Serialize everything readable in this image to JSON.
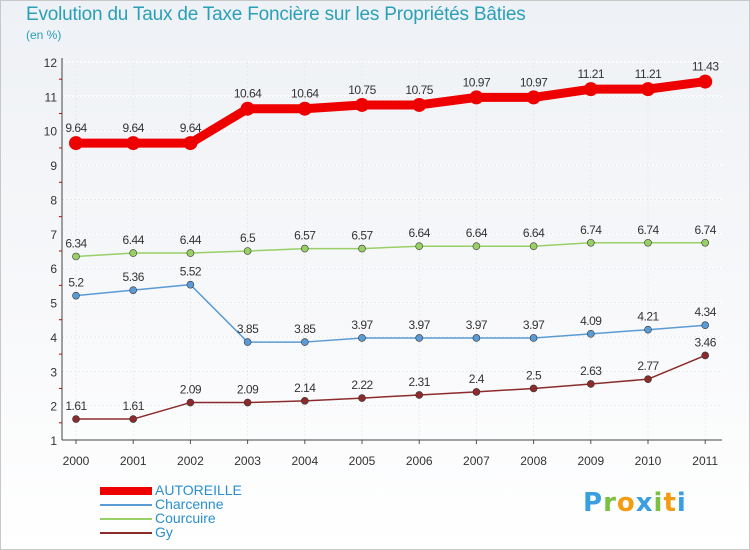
{
  "title": "Evolution du Taux de Taxe Foncière sur les Propriétés Bâties",
  "subtitle": "(en %)",
  "brand": {
    "letters": [
      "P",
      "r",
      "o",
      "x",
      "i",
      "t",
      "i"
    ],
    "colors": [
      "#3a9fe0",
      "#7ac142",
      "#f39c12",
      "#3a9fe0",
      "#7ac142",
      "#f39c12",
      "#3a9fe0"
    ]
  },
  "chart_data": {
    "type": "line",
    "title": "Evolution du Taux de Taxe Foncière sur les Propriétés Bâties",
    "ylabel": "(en %)",
    "xlabel": "",
    "x": [
      "2000",
      "2001",
      "2002",
      "2003",
      "2004",
      "2005",
      "2006",
      "2007",
      "2008",
      "2009",
      "2010",
      "2011"
    ],
    "ylim": [
      1,
      12
    ],
    "yticks": [
      "1",
      "2",
      "3",
      "4",
      "5",
      "6",
      "7",
      "8",
      "9",
      "10",
      "11",
      "12"
    ],
    "grid": true,
    "legend_position": "bottom-left",
    "series": [
      {
        "name": "AUTOREILLE",
        "color": "#ee0000",
        "values": [
          9.64,
          9.64,
          9.64,
          10.64,
          10.64,
          10.75,
          10.75,
          10.97,
          10.97,
          11.21,
          11.21,
          11.43
        ],
        "labels": [
          "9.64",
          "9.64",
          "9.64",
          "10.64",
          "10.64",
          "10.75",
          "10.75",
          "10.97",
          "10.97",
          "11.21",
          "11.21",
          "11.43"
        ]
      },
      {
        "name": "Charcenne",
        "color": "#5b9bd5",
        "values": [
          5.2,
          5.36,
          5.52,
          3.85,
          3.85,
          3.97,
          3.97,
          3.97,
          3.97,
          4.09,
          4.21,
          4.34
        ],
        "labels": [
          "5.2",
          "5.36",
          "5.52",
          "3.85",
          "3.85",
          "3.97",
          "3.97",
          "3.97",
          "3.97",
          "4.09",
          "4.21",
          "4.34"
        ]
      },
      {
        "name": "Courcuire",
        "color": "#99d066",
        "values": [
          6.34,
          6.44,
          6.44,
          6.5,
          6.57,
          6.57,
          6.64,
          6.64,
          6.64,
          6.74,
          6.74,
          6.74
        ],
        "labels": [
          "6.34",
          "6.44",
          "6.44",
          "6.5",
          "6.57",
          "6.57",
          "6.64",
          "6.64",
          "6.64",
          "6.74",
          "6.74",
          "6.74"
        ]
      },
      {
        "name": "Gy",
        "color": "#8b2b2b",
        "values": [
          1.61,
          1.61,
          2.09,
          2.09,
          2.14,
          2.22,
          2.31,
          2.4,
          2.5,
          2.63,
          2.77,
          3.46
        ],
        "labels": [
          "1.61",
          "1.61",
          "2.09",
          "2.09",
          "2.14",
          "2.22",
          "2.31",
          "2.4",
          "2.5",
          "2.63",
          "2.77",
          "3.46"
        ]
      }
    ]
  }
}
